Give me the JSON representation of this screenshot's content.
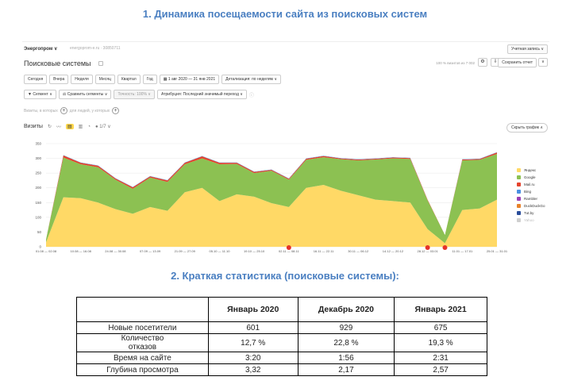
{
  "headings": {
    "h1": "1.  Динамика посещаемости сайта из поисковых систем",
    "h2": "2.  Краткая статистика (поисковые системы):"
  },
  "topbar": {
    "logo": "Энергопром ∨",
    "site": "energoprom-e.ru · 30850711",
    "account": "Учетная запись ∨"
  },
  "report": {
    "title": "Поисковые системы",
    "accuracy": "100 % визитов из 7 002",
    "save": "Сохранить отчет",
    "periods": [
      "Сегодня",
      "Вчера",
      "Неделя",
      "Месяц",
      "Квартал",
      "Год"
    ],
    "date_range": "1 авг 2020 — 31 янв 2021",
    "detail": "Детализация: по неделям ∨",
    "segment": "Сегмент ∨",
    "compare": "Сравнить сегменты ∨",
    "precision": "Точность: 100% ∨",
    "attribution": "Атрибуция: Последний значимый переход ∨",
    "filter_visits": "Визиты, в которых",
    "filter_people": "для людей, у которых",
    "visits_label": "Визиты",
    "goal_count": "1/7 ∨",
    "hide_chart": "Скрыть график ∧"
  },
  "chart_data": {
    "type": "area",
    "stacked": true,
    "x": [
      "01.08 — 02.08",
      "03.08 — 09.08",
      "10.08 — 16.08",
      "17.08 — 23.08",
      "24.08 — 30.08",
      "31.08 — 06.09",
      "07.09 — 13.09",
      "14.09 — 20.09",
      "21.09 — 27.09",
      "28.09 — 04.10",
      "05.10 — 11.10",
      "12.10 — 18.10",
      "19.10 — 25.10",
      "26.10 — 01.11",
      "02.11 — 08.11",
      "09.11 — 15.11",
      "16.11 — 22.11",
      "23.11 — 29.11",
      "30.11 — 06.12",
      "07.12 — 13.12",
      "14.12 — 20.12",
      "21.12 — 27.12",
      "28.12 — 03.01",
      "04.01 — 10.01",
      "11.01 — 17.01",
      "18.01 — 24.01",
      "25.01 — 31.01"
    ],
    "x_tick_labels": [
      "01.08 — 02.08",
      "10.08 — 16.08",
      "24.08 — 30.08",
      "07.09 — 13.09",
      "21.09 — 27.09",
      "05.10 — 11.10",
      "19.10 — 25.10",
      "02.11 — 08.11",
      "16.11 — 22.11",
      "30.11 — 06.12",
      "14.12 — 20.12",
      "28.12 — 03.01",
      "11.01 — 17.01",
      "25.01 — 31.01"
    ],
    "ylim": [
      0,
      350
    ],
    "y_ticks": [
      0,
      50,
      100,
      150,
      200,
      250,
      300,
      350
    ],
    "grid": true,
    "legend_position": "right",
    "series": [
      {
        "name": "Яндекс",
        "color": "#ffd966",
        "values": [
          15,
          168,
          165,
          150,
          128,
          112,
          135,
          122,
          185,
          200,
          155,
          178,
          170,
          148,
          135,
          200,
          210,
          190,
          175,
          160,
          155,
          150,
          60,
          12,
          125,
          130,
          160
        ]
      },
      {
        "name": "Google",
        "color": "#8cc152",
        "values": [
          10,
          135,
          115,
          120,
          100,
          85,
          100,
          98,
          95,
          100,
          125,
          103,
          80,
          110,
          93,
          95,
          94,
          107,
          118,
          136,
          145,
          148,
          98,
          28,
          168,
          165,
          155
        ]
      },
      {
        "name": "Mail.ru",
        "color": "#e5432d",
        "values": [
          0,
          7,
          5,
          5,
          4,
          5,
          4,
          5,
          5,
          7,
          5,
          4,
          4,
          3,
          3,
          4,
          4,
          3,
          3,
          3,
          3,
          3,
          2,
          0,
          3,
          3,
          5
        ]
      },
      {
        "name": "Bing",
        "color": "#4a90e2",
        "values": [
          0,
          1,
          1,
          1,
          1,
          1,
          1,
          1,
          1,
          1,
          1,
          1,
          1,
          1,
          1,
          1,
          1,
          1,
          1,
          1,
          1,
          1,
          0,
          0,
          1,
          1,
          1
        ]
      },
      {
        "name": "Rambler",
        "color": "#9b3fb5",
        "values": [
          0,
          0,
          0,
          0,
          0,
          0,
          0,
          0,
          0,
          0,
          0,
          0,
          0,
          0,
          0,
          0,
          0,
          0,
          0,
          0,
          0,
          0,
          0,
          0,
          0,
          0,
          0
        ]
      },
      {
        "name": "DuckDuckGo",
        "color": "#e8822a",
        "values": [
          0,
          0,
          0,
          0,
          0,
          0,
          0,
          0,
          0,
          0,
          0,
          0,
          0,
          0,
          0,
          0,
          0,
          0,
          0,
          0,
          0,
          0,
          0,
          0,
          0,
          0,
          0
        ]
      },
      {
        "name": "Tut.by",
        "color": "#2a4d9b",
        "values": [
          0,
          0,
          0,
          0,
          0,
          0,
          0,
          0,
          0,
          0,
          0,
          0,
          0,
          0,
          0,
          0,
          0,
          0,
          0,
          0,
          0,
          0,
          0,
          0,
          0,
          0,
          0
        ]
      },
      {
        "name": "Yahoo",
        "color": "#cfcfcf",
        "values": [
          0,
          0,
          0,
          0,
          0,
          0,
          0,
          0,
          0,
          0,
          0,
          0,
          0,
          0,
          0,
          0,
          0,
          0,
          0,
          0,
          0,
          0,
          0,
          0,
          0,
          0,
          0
        ]
      }
    ],
    "markers_at": [
      14,
      22,
      23
    ]
  },
  "table": {
    "headers": [
      "",
      "Январь 2020",
      "Декабрь 2020",
      "Январь 2021"
    ],
    "rows": [
      {
        "label": "Новые посетители",
        "values": [
          "601",
          "929",
          "675"
        ]
      },
      {
        "label": "Количество отказов",
        "values": [
          "12,7 %",
          "22,8 %",
          "19,3 %"
        ]
      },
      {
        "label": "Время на сайте",
        "values": [
          "3:20",
          "1:56",
          "2:31"
        ]
      },
      {
        "label": "Глубина просмотра",
        "values": [
          "3,32",
          "2,17",
          "2,57"
        ]
      }
    ]
  }
}
